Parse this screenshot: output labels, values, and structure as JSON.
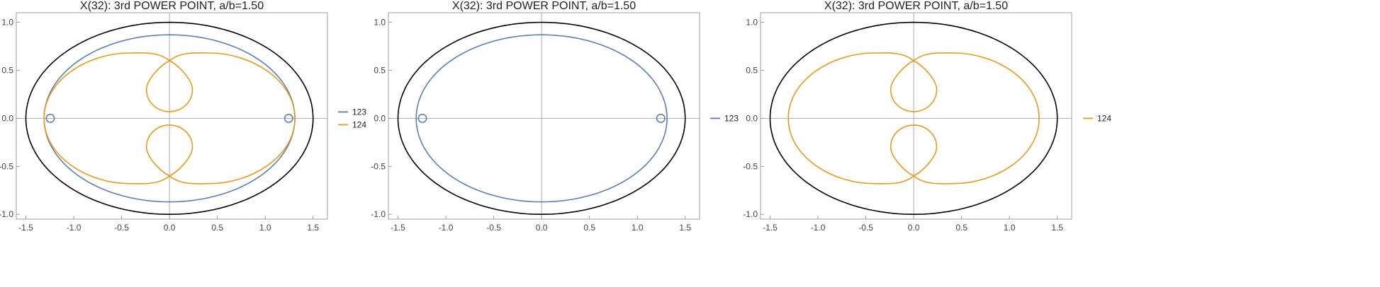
{
  "chart_data": [
    {
      "type": "line",
      "title": "X(32): 3rd POWER POINT, a/b=1.50",
      "xlim": [
        -1.6,
        1.65
      ],
      "ylim": [
        -1.05,
        1.1
      ],
      "xticks": [
        "-1.5",
        "-1.0",
        "-0.5",
        "0.0",
        "0.5",
        "1.0",
        "1.5"
      ],
      "yticks": [
        "-1.0",
        "-0.5",
        "0.0",
        "0.5",
        "1.0"
      ],
      "grid": false,
      "legend_position": "right",
      "reference_curve": {
        "description": "ellipse",
        "a": 1.5,
        "b": 1.0,
        "color": "#000000"
      },
      "series": [
        {
          "name": "123",
          "color": "#5b7fb5",
          "shape": "oval_with_side_loops",
          "a": 1.31,
          "b": 0.87,
          "loop_center_x": 1.245,
          "loop_radius": 0.042
        },
        {
          "name": "124",
          "color": "#e59b1f",
          "shape": "double_loop_bean",
          "extent_x": 1.31,
          "extent_y": 0.68,
          "crossings_y": [
            0.6,
            -0.6
          ],
          "inner_loop_inner_y": 0.07,
          "inner_loop_outer_y": 0.55,
          "inner_loop_halfwidth": 0.24
        }
      ]
    },
    {
      "type": "line",
      "title": "X(32): 3rd POWER POINT, a/b=1.50",
      "xlim": [
        -1.6,
        1.65
      ],
      "ylim": [
        -1.05,
        1.1
      ],
      "xticks": [
        "-1.5",
        "-1.0",
        "-0.5",
        "0.0",
        "0.5",
        "1.0",
        "1.5"
      ],
      "yticks": [
        "-1.0",
        "-0.5",
        "0.0",
        "0.5",
        "1.0"
      ],
      "grid": false,
      "legend_position": "right",
      "reference_curve": {
        "description": "ellipse",
        "a": 1.5,
        "b": 1.0,
        "color": "#000000"
      },
      "series": [
        {
          "name": "123",
          "color": "#5b7fb5",
          "shape": "oval_with_side_loops",
          "a": 1.31,
          "b": 0.87,
          "loop_center_x": 1.245,
          "loop_radius": 0.042
        }
      ]
    },
    {
      "type": "line",
      "title": "X(32): 3rd POWER POINT, a/b=1.50",
      "xlim": [
        -1.6,
        1.65
      ],
      "ylim": [
        -1.05,
        1.1
      ],
      "xticks": [
        "-1.5",
        "-1.0",
        "-0.5",
        "0.0",
        "0.5",
        "1.0",
        "1.5"
      ],
      "yticks": [
        "-1.0",
        "-0.5",
        "0.0",
        "0.5",
        "1.0"
      ],
      "grid": false,
      "legend_position": "right",
      "reference_curve": {
        "description": "ellipse",
        "a": 1.5,
        "b": 1.0,
        "color": "#000000"
      },
      "series": [
        {
          "name": "124",
          "color": "#e59b1f",
          "shape": "double_loop_bean",
          "extent_x": 1.31,
          "extent_y": 0.68,
          "crossings_y": [
            0.6,
            -0.6
          ],
          "inner_loop_inner_y": 0.07,
          "inner_loop_outer_y": 0.55,
          "inner_loop_halfwidth": 0.24
        }
      ]
    }
  ]
}
